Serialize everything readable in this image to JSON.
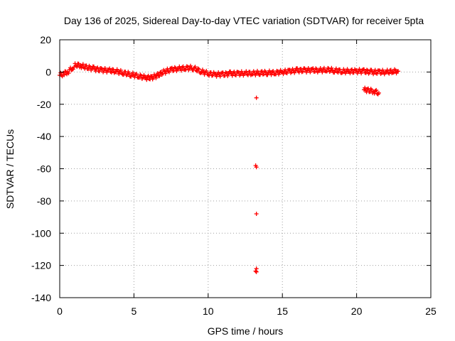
{
  "chart_data": {
    "type": "scatter",
    "title": "Day 136 of 2025, Sidereal Day-to-day VTEC variation (SDTVAR) for receiver 5pta",
    "xlabel": "GPS time / hours",
    "ylabel": "SDTVAR / TECUs",
    "xlim": [
      0,
      25
    ],
    "ylim": [
      -140,
      20
    ],
    "xticks": [
      0,
      5,
      10,
      15,
      20,
      25
    ],
    "yticks": [
      -140,
      -120,
      -100,
      -80,
      -60,
      -40,
      -20,
      0,
      20
    ],
    "grid": true,
    "marker": "plus",
    "series_color": "#ff0000",
    "trend": [
      [
        0.0,
        -2.0
      ],
      [
        0.3,
        -1.0
      ],
      [
        0.6,
        0.5
      ],
      [
        0.9,
        3.0
      ],
      [
        1.1,
        4.5
      ],
      [
        1.4,
        4.0
      ],
      [
        1.8,
        3.0
      ],
      [
        2.3,
        2.0
      ],
      [
        2.8,
        1.2
      ],
      [
        3.3,
        1.0
      ],
      [
        3.8,
        0.5
      ],
      [
        4.3,
        -0.5
      ],
      [
        4.8,
        -1.5
      ],
      [
        5.3,
        -2.5
      ],
      [
        5.8,
        -3.5
      ],
      [
        6.2,
        -3.5
      ],
      [
        6.6,
        -2.0
      ],
      [
        7.0,
        0.0
      ],
      [
        7.5,
        1.5
      ],
      [
        8.0,
        2.0
      ],
      [
        8.5,
        2.5
      ],
      [
        9.0,
        2.5
      ],
      [
        9.5,
        0.5
      ],
      [
        10.0,
        -1.0
      ],
      [
        10.5,
        -1.5
      ],
      [
        11.0,
        -1.5
      ],
      [
        11.5,
        -1.0
      ],
      [
        12.0,
        -1.0
      ],
      [
        12.5,
        -0.8
      ],
      [
        13.0,
        -0.8
      ],
      [
        13.5,
        -0.5
      ],
      [
        14.0,
        -0.5
      ],
      [
        14.5,
        -0.5
      ],
      [
        15.0,
        0.0
      ],
      [
        15.5,
        0.5
      ],
      [
        16.0,
        1.0
      ],
      [
        16.5,
        1.0
      ],
      [
        17.0,
        1.2
      ],
      [
        17.5,
        1.0
      ],
      [
        18.0,
        1.5
      ],
      [
        18.5,
        1.0
      ],
      [
        19.0,
        0.5
      ],
      [
        19.5,
        0.5
      ],
      [
        20.0,
        0.5
      ],
      [
        20.5,
        0.5
      ],
      [
        21.0,
        0.0
      ],
      [
        21.5,
        0.0
      ],
      [
        22.0,
        0.0
      ],
      [
        22.5,
        0.5
      ],
      [
        22.8,
        0.5
      ]
    ],
    "secondary_segment": [
      [
        20.5,
        -11.0
      ],
      [
        20.9,
        -11.5
      ],
      [
        21.2,
        -12.0
      ],
      [
        21.5,
        -13.0
      ]
    ],
    "outliers": [
      [
        13.25,
        -16.0
      ],
      [
        13.2,
        -58.0
      ],
      [
        13.25,
        -59.0
      ],
      [
        13.25,
        -88.0
      ],
      [
        13.25,
        -122.0
      ],
      [
        13.2,
        -123.5
      ],
      [
        13.25,
        -124.0
      ]
    ]
  }
}
